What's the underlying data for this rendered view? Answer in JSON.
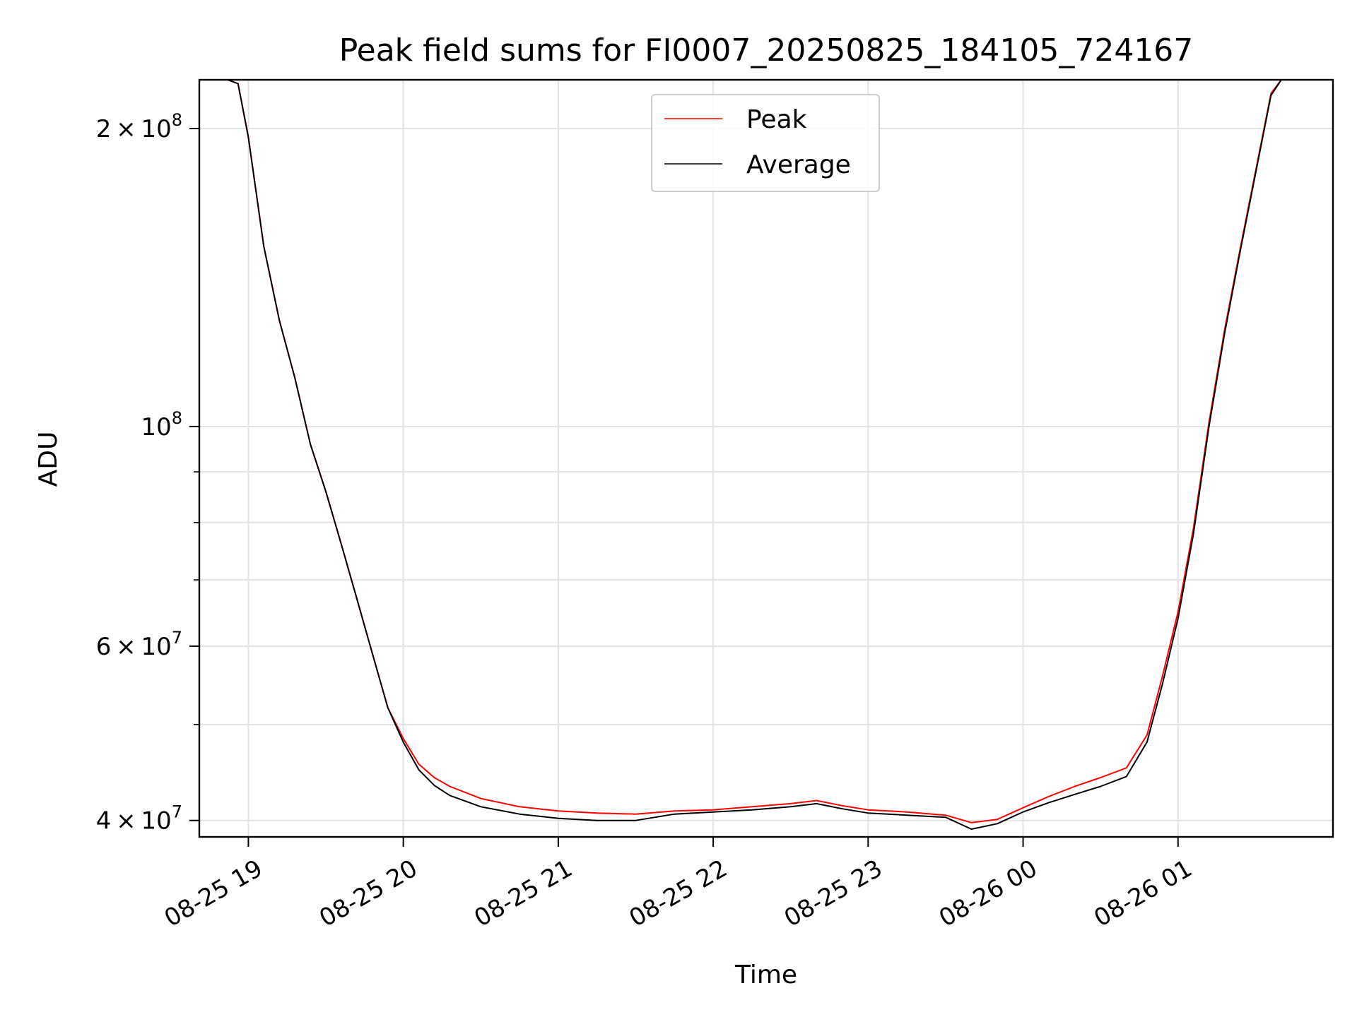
{
  "chart_data": {
    "type": "line",
    "title": "Peak field sums for FI0007_20250825_184105_724167",
    "xlabel": "Time",
    "ylabel": "ADU",
    "yscale": "log",
    "grid": true,
    "legend": {
      "position": "top-center",
      "entries": [
        {
          "name": "Peak",
          "color": "#ff0000"
        },
        {
          "name": "Average",
          "color": "#000000"
        }
      ]
    },
    "xlim": [
      "2025-08-25 18:41",
      "2025-08-26 02:00"
    ],
    "ylim": [
      38500000,
      224000000
    ],
    "x_ticks": [
      {
        "time": "2025-08-25 19:00",
        "label": "08-25 19"
      },
      {
        "time": "2025-08-25 20:00",
        "label": "08-25 20"
      },
      {
        "time": "2025-08-25 21:00",
        "label": "08-25 21"
      },
      {
        "time": "2025-08-25 22:00",
        "label": "08-25 22"
      },
      {
        "time": "2025-08-25 23:00",
        "label": "08-25 23"
      },
      {
        "time": "2025-08-26 00:00",
        "label": "08-26 00"
      },
      {
        "time": "2025-08-26 01:00",
        "label": "08-26 01"
      }
    ],
    "y_major_ticks": [
      {
        "value": 40000000,
        "mantissa": "4",
        "exponent": "7"
      },
      {
        "value": 60000000,
        "mantissa": "6",
        "exponent": "7"
      },
      {
        "value": 100000000,
        "mantissa": "",
        "exponent": "8"
      },
      {
        "value": 200000000,
        "mantissa": "2",
        "exponent": "8"
      }
    ],
    "y_minor_ticks": [
      50000000,
      70000000,
      80000000,
      90000000
    ],
    "series": [
      {
        "name": "Average",
        "color": "#000000",
        "x": [
          "2025-08-25 18:41",
          "2025-08-25 18:52",
          "2025-08-25 18:56",
          "2025-08-25 19:00",
          "2025-08-25 19:06",
          "2025-08-25 19:12",
          "2025-08-25 19:18",
          "2025-08-25 19:24",
          "2025-08-25 19:30",
          "2025-08-25 19:36",
          "2025-08-25 19:42",
          "2025-08-25 19:48",
          "2025-08-25 19:54",
          "2025-08-25 20:00",
          "2025-08-25 20:06",
          "2025-08-25 20:12",
          "2025-08-25 20:18",
          "2025-08-25 20:30",
          "2025-08-25 20:45",
          "2025-08-25 21:00",
          "2025-08-25 21:15",
          "2025-08-25 21:30",
          "2025-08-25 21:45",
          "2025-08-25 22:00",
          "2025-08-25 22:15",
          "2025-08-25 22:30",
          "2025-08-25 22:40",
          "2025-08-25 22:50",
          "2025-08-25 23:00",
          "2025-08-25 23:15",
          "2025-08-25 23:30",
          "2025-08-25 23:40",
          "2025-08-25 23:50",
          "2025-08-26 00:00",
          "2025-08-26 00:10",
          "2025-08-26 00:20",
          "2025-08-26 00:30",
          "2025-08-26 00:40",
          "2025-08-26 00:48",
          "2025-08-26 00:54",
          "2025-08-26 01:00",
          "2025-08-26 01:06",
          "2025-08-26 01:12",
          "2025-08-26 01:18",
          "2025-08-26 01:24",
          "2025-08-26 01:30",
          "2025-08-26 01:36",
          "2025-08-26 01:40"
        ],
        "y": [
          224000000,
          224000000,
          222000000,
          196000000,
          152000000,
          128000000,
          112000000,
          96000000,
          86000000,
          76000000,
          67000000,
          59000000,
          52000000,
          48000000,
          45000000,
          43400000,
          42400000,
          41300000,
          40600000,
          40200000,
          40000000,
          40000000,
          40600000,
          40800000,
          41000000,
          41300000,
          41600000,
          41100000,
          40700000,
          40500000,
          40300000,
          39200000,
          39700000,
          40800000,
          41700000,
          42500000,
          43300000,
          44300000,
          48000000,
          55000000,
          64000000,
          78000000,
          100000000,
          124000000,
          150000000,
          180000000,
          216000000,
          224000000
        ]
      },
      {
        "name": "Peak",
        "color": "#ff0000",
        "x": [
          "2025-08-25 18:41",
          "2025-08-25 18:52",
          "2025-08-25 18:56",
          "2025-08-25 19:00",
          "2025-08-25 19:06",
          "2025-08-25 19:12",
          "2025-08-25 19:18",
          "2025-08-25 19:24",
          "2025-08-25 19:30",
          "2025-08-25 19:36",
          "2025-08-25 19:42",
          "2025-08-25 19:48",
          "2025-08-25 19:54",
          "2025-08-25 20:00",
          "2025-08-25 20:06",
          "2025-08-25 20:12",
          "2025-08-25 20:18",
          "2025-08-25 20:30",
          "2025-08-25 20:45",
          "2025-08-25 21:00",
          "2025-08-25 21:15",
          "2025-08-25 21:30",
          "2025-08-25 21:45",
          "2025-08-25 22:00",
          "2025-08-25 22:15",
          "2025-08-25 22:30",
          "2025-08-25 22:40",
          "2025-08-25 22:50",
          "2025-08-25 23:00",
          "2025-08-25 23:15",
          "2025-08-25 23:30",
          "2025-08-25 23:40",
          "2025-08-25 23:50",
          "2025-08-26 00:00",
          "2025-08-26 00:10",
          "2025-08-26 00:20",
          "2025-08-26 00:30",
          "2025-08-26 00:40",
          "2025-08-26 00:48",
          "2025-08-26 00:54",
          "2025-08-26 01:00",
          "2025-08-26 01:06",
          "2025-08-26 01:12",
          "2025-08-26 01:18",
          "2025-08-26 01:24",
          "2025-08-26 01:30",
          "2025-08-26 01:36",
          "2025-08-26 01:40"
        ],
        "y": [
          224000000,
          224000000,
          222000000,
          196000000,
          152000000,
          128000000,
          112000000,
          96000000,
          86000000,
          76000000,
          67000000,
          59000000,
          52000000,
          48400000,
          45600000,
          44200000,
          43300000,
          42100000,
          41300000,
          40900000,
          40700000,
          40600000,
          40900000,
          41000000,
          41300000,
          41600000,
          41900000,
          41400000,
          41000000,
          40800000,
          40500000,
          39800000,
          40100000,
          41200000,
          42300000,
          43300000,
          44200000,
          45200000,
          48800000,
          56000000,
          65000000,
          79000000,
          101000000,
          125000000,
          151000000,
          181000000,
          217000000,
          224000000
        ]
      }
    ]
  }
}
